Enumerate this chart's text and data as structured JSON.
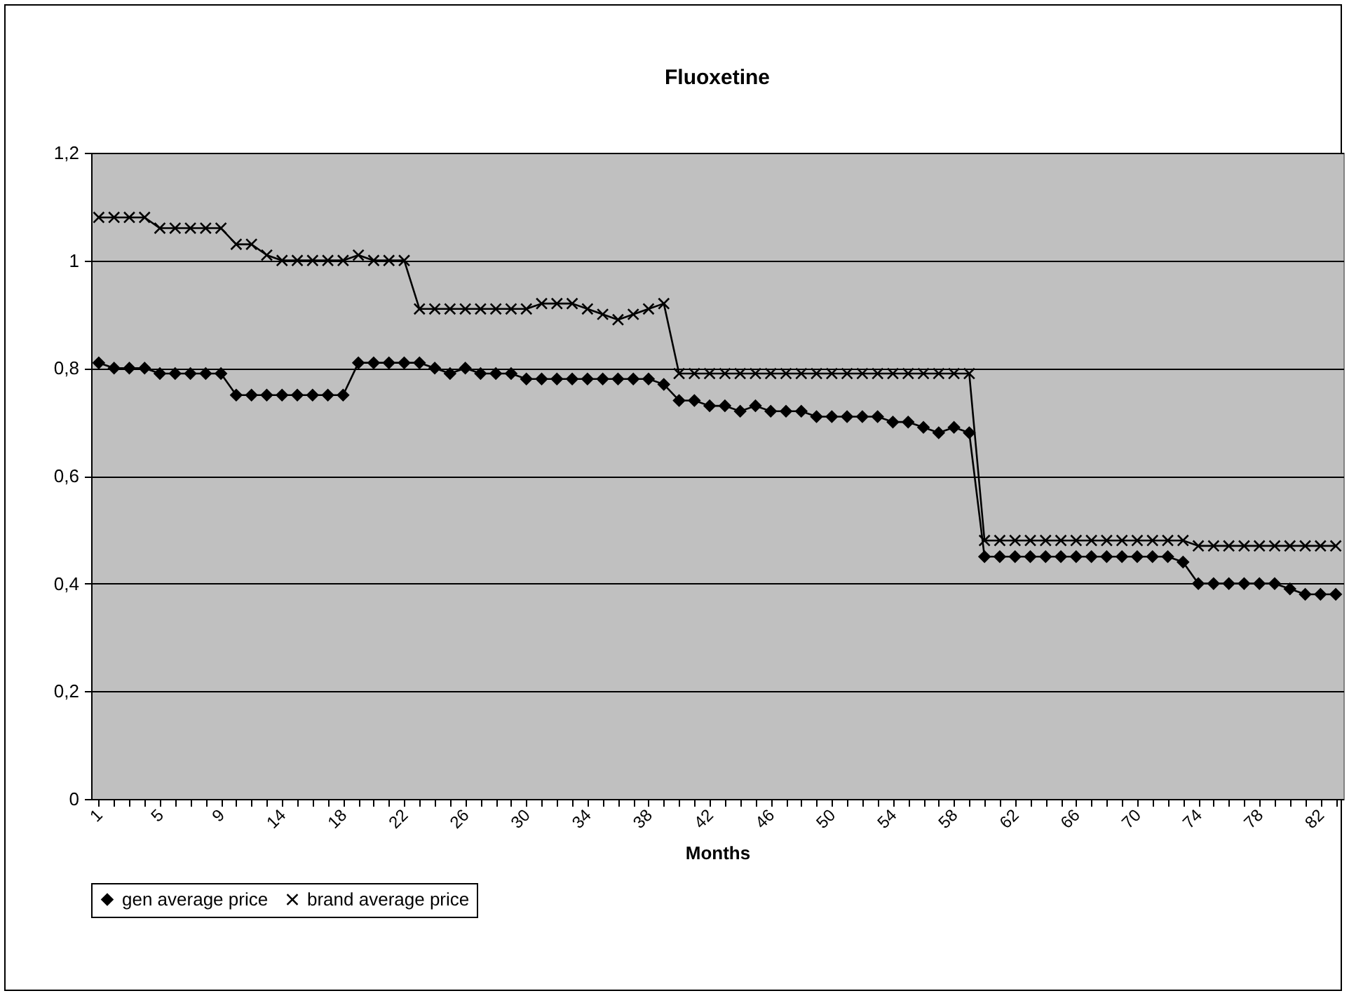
{
  "chart_data": {
    "type": "line",
    "title": "Fluoxetine",
    "xlabel": "Months",
    "categories": [
      "1",
      null,
      null,
      null,
      "5",
      null,
      null,
      null,
      "9",
      null,
      null,
      null,
      "14",
      null,
      null,
      null,
      "18",
      null,
      null,
      null,
      "22",
      null,
      null,
      null,
      "26",
      null,
      null,
      null,
      "30",
      null,
      null,
      null,
      "34",
      null,
      null,
      null,
      "38",
      null,
      null,
      null,
      "42",
      null,
      null,
      null,
      "46",
      null,
      null,
      null,
      "50",
      null,
      null,
      null,
      "54",
      null,
      null,
      null,
      "58",
      null,
      null,
      null,
      "62",
      null,
      null,
      null,
      "66",
      null,
      null,
      null,
      "70",
      null,
      null,
      null,
      "74",
      null,
      null,
      null,
      "78",
      null,
      null,
      null,
      "82",
      null
    ],
    "series": [
      {
        "name": "gen average price",
        "color": "#000000",
        "marker": "diamond",
        "values": [
          0.81,
          0.8,
          0.8,
          0.8,
          0.79,
          0.79,
          0.79,
          0.79,
          0.79,
          0.75,
          0.75,
          0.75,
          0.75,
          0.75,
          0.75,
          0.75,
          0.75,
          0.81,
          0.81,
          0.81,
          0.81,
          0.81,
          0.8,
          0.79,
          0.8,
          0.79,
          0.79,
          0.79,
          0.78,
          0.78,
          0.78,
          0.78,
          0.78,
          0.78,
          0.78,
          0.78,
          0.78,
          0.77,
          0.74,
          0.74,
          0.73,
          0.73,
          0.72,
          0.73,
          0.72,
          0.72,
          0.72,
          0.71,
          0.71,
          0.71,
          0.71,
          0.71,
          0.7,
          0.7,
          0.69,
          0.68,
          0.69,
          0.68,
          0.45,
          0.45,
          0.45,
          0.45,
          0.45,
          0.45,
          0.45,
          0.45,
          0.45,
          0.45,
          0.45,
          0.45,
          0.45,
          0.44,
          0.4,
          0.4,
          0.4,
          0.4,
          0.4,
          0.4,
          0.39,
          0.38,
          0.38,
          0.38
        ]
      },
      {
        "name": "brand average price",
        "color": "#000000",
        "marker": "cross",
        "values": [
          1.08,
          1.08,
          1.08,
          1.08,
          1.06,
          1.06,
          1.06,
          1.06,
          1.06,
          1.03,
          1.03,
          1.01,
          1.0,
          1.0,
          1.0,
          1.0,
          1.0,
          1.01,
          1.0,
          1.0,
          1.0,
          0.91,
          0.91,
          0.91,
          0.91,
          0.91,
          0.91,
          0.91,
          0.91,
          0.92,
          0.92,
          0.92,
          0.91,
          0.9,
          0.89,
          0.9,
          0.91,
          0.92,
          0.79,
          0.79,
          0.79,
          0.79,
          0.79,
          0.79,
          0.79,
          0.79,
          0.79,
          0.79,
          0.79,
          0.79,
          0.79,
          0.79,
          0.79,
          0.79,
          0.79,
          0.79,
          0.79,
          0.79,
          0.48,
          0.48,
          0.48,
          0.48,
          0.48,
          0.48,
          0.48,
          0.48,
          0.48,
          0.48,
          0.48,
          0.48,
          0.48,
          0.48,
          0.47,
          0.47,
          0.47,
          0.47,
          0.47,
          0.47,
          0.47,
          0.47,
          0.47,
          0.47
        ]
      }
    ],
    "ylim": [
      0,
      1.2
    ],
    "yticks": [
      0,
      {
        "value": 0.2,
        "label": "0,2"
      },
      {
        "value": 0.4,
        "label": "0,4"
      },
      {
        "value": 0.6,
        "label": "0,6"
      },
      {
        "value": 0.8,
        "label": "0,8"
      },
      1,
      {
        "value": 1.2,
        "label": "1,2"
      }
    ],
    "grid": "y",
    "legend": "bottom",
    "line_style": "solid"
  }
}
